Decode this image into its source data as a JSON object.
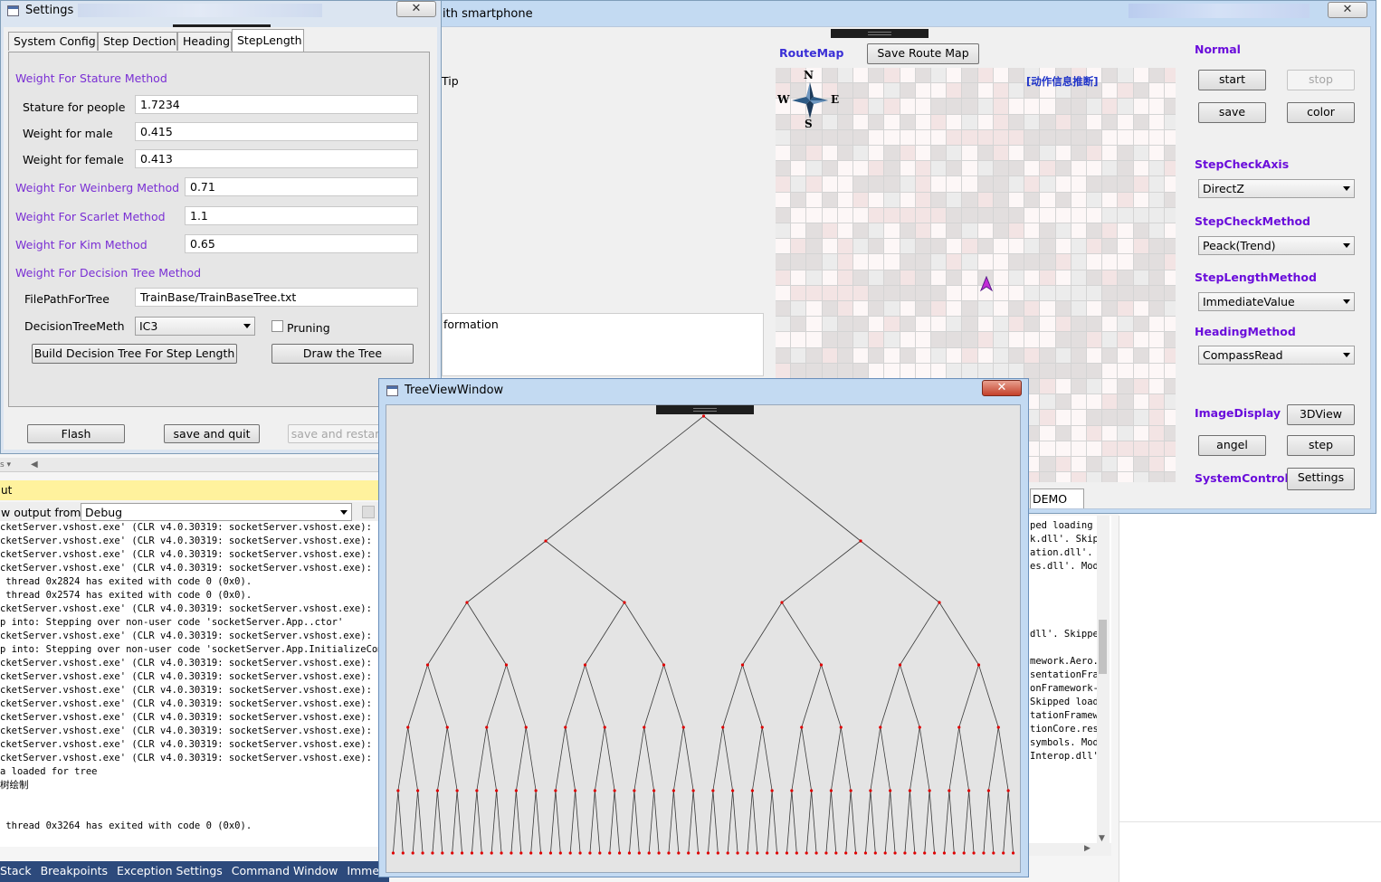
{
  "main_window": {
    "title_fragment": "ith smartphone",
    "tip_label": "Tip",
    "information_label": "formation",
    "routemap_label": "RouteMap",
    "save_route_map": "Save Route Map",
    "action_info": "[动作信息推断]",
    "compass": {
      "n": "N",
      "s": "S",
      "e": "E",
      "w": "W"
    },
    "demo_tab": "DEMO",
    "normal_label": "Normal",
    "start": "start",
    "stop": "stop",
    "save": "save",
    "color": "color",
    "step_check_axis_label": "StepCheckAxis",
    "step_check_axis_value": "DirectZ",
    "step_check_method_label": "StepCheckMethod",
    "step_check_method_value": "Peack(Trend)",
    "step_length_method_label": "StepLengthMethod",
    "step_length_method_value": "ImmediateValue",
    "heading_method_label": "HeadingMethod",
    "heading_method_value": "CompassRead",
    "image_display_label": "ImageDisplay",
    "btn_3dview": "3DView",
    "btn_angel": "angel",
    "btn_step": "step",
    "system_control_label": "SystemControl",
    "btn_settings": "Settings",
    "close_glyph": "✕"
  },
  "settings": {
    "title": "Settings",
    "tabs": [
      "System Config",
      "Step Dection",
      "Heading",
      "StepLength"
    ],
    "weight_stature_header": "Weight For Stature Method",
    "stature_label": "Stature for people",
    "stature_value": "1.7234",
    "male_label": "Weight for male",
    "male_value": "0.415",
    "female_label": "Weight for female",
    "female_value": "0.413",
    "weinberg_label": "Weight For Weinberg Method",
    "weinberg_value": "0.71",
    "scarlet_label": "Weight For Scarlet Method",
    "scarlet_value": "1.1",
    "kim_label": "Weight For Kim Method",
    "kim_value": "0.65",
    "decision_tree_header": "Weight For Decision Tree Method",
    "filepath_label": "FilePathForTree",
    "filepath_value": "TrainBase/TrainBaseTree.txt",
    "method_label": "DecisionTreeMeth",
    "method_value": "IC3",
    "pruning_label": "Pruning",
    "build_button": "Build Decision Tree For Step Length",
    "draw_button": "Draw the Tree",
    "flash_button": "Flash",
    "save_quit_button": "save and quit",
    "save_restart_button": "save and restart",
    "close_glyph": "✕"
  },
  "output_panel": {
    "title": "ut",
    "show_output_label": "w output from:",
    "source_value": "Debug",
    "left_lines": [
      "cketServer.vshost.exe' (CLR v4.0.30319: socketServer.vshost.exe): Load",
      "cketServer.vshost.exe' (CLR v4.0.30319: socketServer.vshost.exe): Load",
      "cketServer.vshost.exe' (CLR v4.0.30319: socketServer.vshost.exe): Load",
      "cketServer.vshost.exe' (CLR v4.0.30319: socketServer.vshost.exe): Load",
      " thread 0x2824 has exited with code 0 (0x0).",
      " thread 0x2574 has exited with code 0 (0x0).",
      "cketServer.vshost.exe' (CLR v4.0.30319: socketServer.vshost.exe): Load",
      "p into: Stepping over non-user code 'socketServer.App..ctor'",
      "cketServer.vshost.exe' (CLR v4.0.30319: socketServer.vshost.exe): Load",
      "p into: Stepping over non-user code 'socketServer.App.InitializeCompon",
      "cketServer.vshost.exe' (CLR v4.0.30319: socketServer.vshost.exe): Load",
      "cketServer.vshost.exe' (CLR v4.0.30319: socketServer.vshost.exe): Load",
      "cketServer.vshost.exe' (CLR v4.0.30319: socketServer.vshost.exe): Load",
      "cketServer.vshost.exe' (CLR v4.0.30319: socketServer.vshost.exe): Load",
      "cketServer.vshost.exe' (CLR v4.0.30319: socketServer.vshost.exe): Load",
      "cketServer.vshost.exe' (CLR v4.0.30319: socketServer.vshost.exe): Load",
      "cketServer.vshost.exe' (CLR v4.0.30319: socketServer.vshost.exe): Load",
      "cketServer.vshost.exe' (CLR v4.0.30319: socketServer.vshost.exe): Load",
      "a loaded for tree",
      "树绘制",
      "",
      "",
      " thread 0x3264 has exited with code 0 (0x0)."
    ],
    "right_lines": [
      "ped loading",
      "k.dll'. Skip",
      "ation.dll'.",
      "es.dll'. Mod",
      "",
      "",
      "",
      "",
      "dll'. Skippe",
      "",
      "mework.Aero.",
      "sentationFra",
      "onFramework-",
      "Skipped load",
      "tationFramew",
      "tionCore.res",
      "symbols. Mod",
      "Interop.dll'"
    ]
  },
  "bottom_tabs": [
    "Stack",
    "Breakpoints",
    "Exception Settings",
    "Command Window",
    "Immediate"
  ],
  "tree_window": {
    "title": "TreeViewWindow",
    "close_glyph": "✕"
  }
}
